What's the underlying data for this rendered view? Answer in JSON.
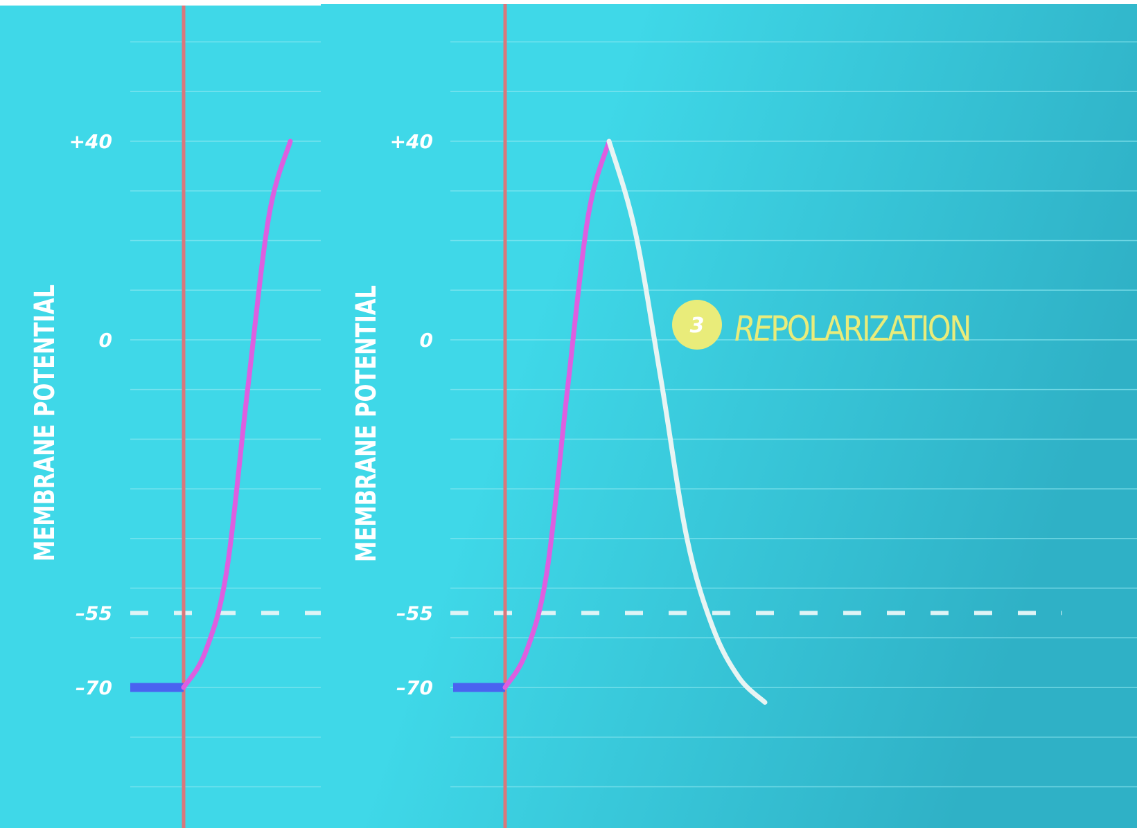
{
  "colors": {
    "background_light": "#3fd8e8",
    "background_dark": "#2fb1c6",
    "gridline": "#8fe8f1",
    "stimulus_line": "#d9777b",
    "resting_segment": "#4a63f0",
    "depolarization_curve": "#dd5fe0",
    "repolarization_curve": "#e8f4f3",
    "threshold_dash": "#dff4f6",
    "annotation": "#e9ec7a",
    "text": "#ffffff"
  },
  "chart_data": [
    {
      "type": "line",
      "ylabel": "MEMBRANE POTENTIAL",
      "xlabel": "",
      "ylim": [
        -100,
        60
      ],
      "yticks": [
        {
          "value": 40,
          "label": "+40"
        },
        {
          "value": 0,
          "label": "0"
        },
        {
          "value": -55,
          "label": "–55"
        },
        {
          "value": -70,
          "label": "–70"
        }
      ],
      "threshold": -55,
      "stimulus_x": 0,
      "xlim": [
        -1,
        10
      ],
      "grid": true,
      "series": [
        {
          "role": "resting",
          "x": [
            -1,
            0
          ],
          "y": [
            -70,
            -70
          ]
        },
        {
          "role": "depolarization",
          "x": [
            0,
            0.4,
            0.8,
            1.2,
            1.6,
            2.0
          ],
          "y": [
            -70,
            -63,
            -47,
            -10,
            25,
            40
          ]
        }
      ]
    },
    {
      "type": "line",
      "ylabel": "MEMBRANE POTENTIAL",
      "xlabel": "",
      "ylim": [
        -100,
        60
      ],
      "yticks": [
        {
          "value": 40,
          "label": "+40"
        },
        {
          "value": 0,
          "label": "0"
        },
        {
          "value": -55,
          "label": "–55"
        },
        {
          "value": -70,
          "label": "–70"
        }
      ],
      "threshold": -55,
      "stimulus_x": 0,
      "xlim": [
        -1,
        10
      ],
      "grid": true,
      "series": [
        {
          "role": "resting",
          "x": [
            -1,
            0
          ],
          "y": [
            -70,
            -70
          ]
        },
        {
          "role": "depolarization",
          "x": [
            0,
            0.4,
            0.8,
            1.2,
            1.6,
            2.0
          ],
          "y": [
            -70,
            -63,
            -47,
            -10,
            25,
            40
          ]
        },
        {
          "role": "repolarization",
          "x": [
            2.0,
            2.5,
            3.0,
            3.5,
            4.0,
            4.5,
            5.0
          ],
          "y": [
            40,
            22,
            -8,
            -40,
            -58,
            -68,
            -73
          ]
        }
      ],
      "annotation": {
        "number": "3",
        "prefix": "RE",
        "text": "POLARIZATION"
      }
    }
  ]
}
